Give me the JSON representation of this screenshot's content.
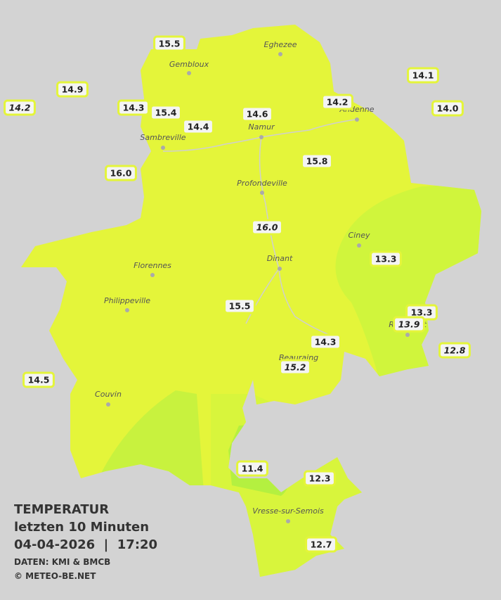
{
  "stations": [
    "15.5",
    "14.9",
    "14.2",
    "14.3",
    "15.4",
    "14.4",
    "14.6",
    "14.2",
    "14.1",
    "14.0",
    "16.0",
    "15.8",
    "16.0",
    "13.3",
    "15.5",
    "13.3",
    "13.9",
    "14.3",
    "12.8",
    "15.2",
    "14.5",
    "11.4",
    "12.3",
    "12.7"
  ],
  "places": [
    "Eghezee",
    "Gembloux",
    "Andenne",
    "Namur",
    "Sambreville",
    "Profondeville",
    "Ciney",
    "Dinant",
    "Florennes",
    "Philippeville",
    "Rochefort",
    "Beauraing",
    "Couvin",
    "Vresse-sur-Semois"
  ],
  "legend": {
    "title": "TEMPERATUR",
    "subtitle": "letzten 10 Minuten",
    "timestamp": "04-04-2026  |  17:20",
    "source": "DATEN: KMI & BMCB",
    "copyright": "© METEO-BE.NET"
  }
}
